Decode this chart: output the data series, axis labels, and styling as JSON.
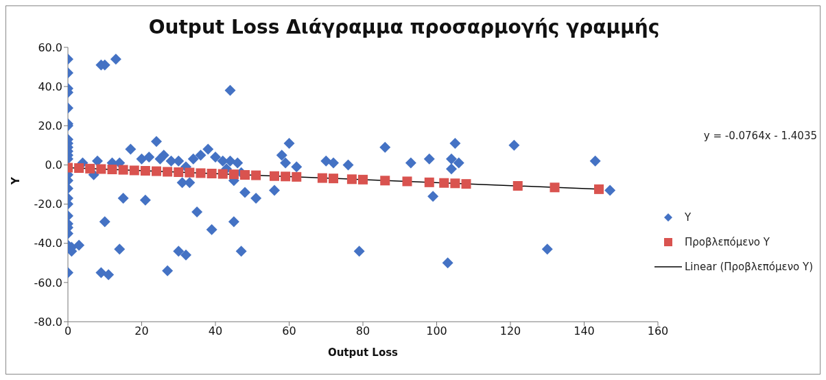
{
  "chart_data": {
    "type": "scatter",
    "title": "Output Loss Διάγραμμα προσαρμογής γραμμής",
    "xlabel": "Output Loss",
    "ylabel": "Y",
    "xlim": [
      0,
      160
    ],
    "xticks": [
      0,
      20,
      40,
      60,
      80,
      100,
      120,
      140,
      160
    ],
    "ylim": [
      -80,
      60
    ],
    "yticks": [
      {
        "value": -80,
        "label": "-80.0"
      },
      {
        "value": -60,
        "label": "-60.0"
      },
      {
        "value": -40,
        "label": "-40.0"
      },
      {
        "value": -20,
        "label": "-20.0"
      },
      {
        "value": 0,
        "label": "0.0"
      },
      {
        "value": 20,
        "label": "20.0"
      },
      {
        "value": 40,
        "label": "40.0"
      },
      {
        "value": 60,
        "label": "60.0"
      }
    ],
    "grid": false,
    "legend": "right",
    "annotations": [
      "y = -0.0764x - 1.4035"
    ],
    "series": [
      {
        "name": "Y",
        "marker": "diamond",
        "color": "#4472c4",
        "x": [
          0,
          0,
          0,
          0,
          0,
          0,
          0,
          0,
          0,
          0,
          0,
          0,
          0,
          0,
          0,
          0,
          0,
          0,
          0,
          0,
          0,
          0,
          0,
          0,
          1,
          1,
          3,
          17,
          24,
          20,
          22,
          26,
          28,
          36,
          38,
          40,
          42,
          44,
          46,
          30,
          34,
          8,
          12,
          4,
          14,
          25,
          32,
          7,
          31,
          33,
          43,
          45,
          47,
          48,
          51,
          56,
          15,
          21,
          35,
          10,
          45,
          39,
          14,
          30,
          32,
          47,
          27,
          9,
          11,
          10,
          13,
          9,
          44,
          58,
          59,
          60,
          62,
          70,
          72,
          76,
          86,
          93,
          98,
          99,
          103,
          79,
          105,
          104,
          104,
          106,
          121,
          130,
          143,
          147
        ],
        "values": [
          54,
          47,
          39,
          37,
          29,
          21,
          20,
          13,
          11,
          9,
          7,
          5,
          3,
          -5,
          -8,
          -12,
          -17,
          -20,
          -26,
          -30,
          -32,
          -35,
          -41,
          -55,
          -42,
          -44,
          -41,
          8,
          12,
          3,
          4,
          5,
          2,
          5,
          8,
          4,
          2,
          2,
          1,
          2,
          3,
          2,
          1,
          1,
          1,
          3,
          -1,
          -5,
          -9,
          -9,
          -2,
          -8,
          -4,
          -14,
          -17,
          -13,
          -17,
          -18,
          -24,
          -29,
          -29,
          -33,
          -43,
          -44,
          -46,
          -44,
          -54,
          -55,
          -56,
          51,
          54,
          51,
          38,
          5,
          1,
          11,
          -1,
          2,
          1,
          0,
          9,
          1,
          3,
          -16,
          -50,
          -44,
          11,
          3,
          -2,
          1,
          10,
          -43,
          2,
          -13
        ]
      },
      {
        "name": "Προβλεπόμενο Y",
        "marker": "square",
        "color": "#d9534f",
        "x": [
          0,
          3,
          6,
          9,
          12,
          15,
          18,
          21,
          24,
          27,
          30,
          33,
          36,
          39,
          42,
          45,
          48,
          51,
          56,
          59,
          62,
          69,
          72,
          77,
          80,
          86,
          92,
          98,
          102,
          105,
          108,
          122,
          132,
          144
        ],
        "values": [
          -1.4,
          -1.6,
          -1.9,
          -2.1,
          -2.3,
          -2.5,
          -2.8,
          -3.0,
          -3.2,
          -3.5,
          -3.7,
          -3.9,
          -4.2,
          -4.4,
          -4.6,
          -4.8,
          -5.1,
          -5.3,
          -5.7,
          -5.9,
          -6.1,
          -6.7,
          -6.9,
          -7.3,
          -7.5,
          -8.0,
          -8.4,
          -8.9,
          -9.2,
          -9.4,
          -9.7,
          -10.7,
          -11.5,
          -12.4
        ]
      },
      {
        "name": "Linear (Προβλεπόμενο Y)",
        "type": "line",
        "marker": "none",
        "line_style": "solid",
        "color": "#000000",
        "x": [
          0,
          144
        ],
        "values": [
          -1.4,
          -12.4
        ]
      }
    ]
  }
}
